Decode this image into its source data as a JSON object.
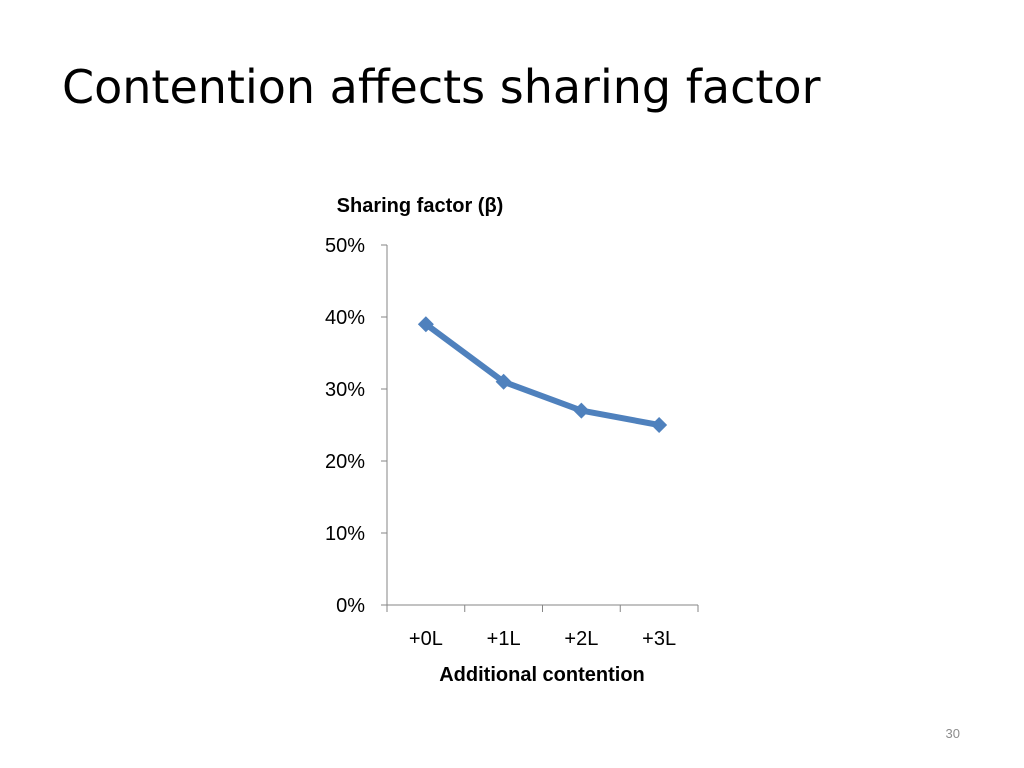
{
  "slide": {
    "title": "Contention affects sharing factor",
    "number": "30"
  },
  "colors": {
    "series": "#4f81bd",
    "axis": "#868686"
  },
  "chart_data": {
    "type": "line",
    "title": "Sharing factor (β)",
    "xlabel": "Additional contention",
    "ylabel": "",
    "categories": [
      "+0L",
      "+1L",
      "+2L",
      "+3L"
    ],
    "series": [
      {
        "values": [
          39,
          31,
          27,
          25
        ]
      }
    ],
    "ylim": [
      0,
      50
    ],
    "yticks": [
      0,
      10,
      20,
      30,
      40,
      50
    ],
    "ytick_labels": [
      "0%",
      "10%",
      "20%",
      "30%",
      "40%",
      "50%"
    ],
    "grid": false,
    "legend": "none",
    "marker": "diamond"
  }
}
